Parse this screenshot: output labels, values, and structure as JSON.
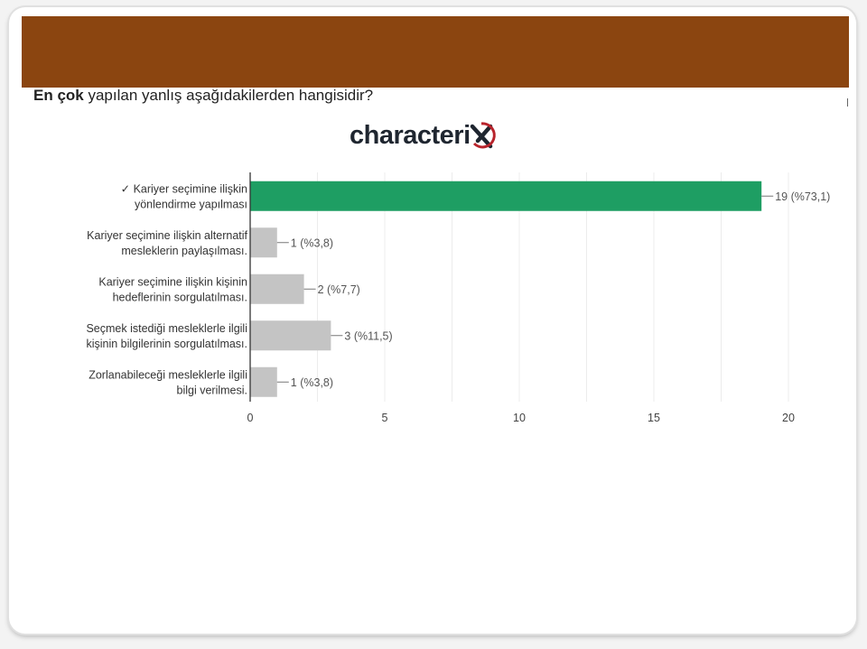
{
  "question": {
    "bold": "En çok",
    "rest": " yapılan yanlış aşağıdakilerden hangisidir?"
  },
  "logo": {
    "text": "characteri"
  },
  "colors": {
    "banner": "#8b4510",
    "correct_bar": "#1e9e63",
    "other_bar": "#c4c4c4",
    "correct_label": "#1e8a57",
    "logo_x": "#b8242c"
  },
  "chart_data": {
    "type": "bar",
    "orientation": "horizontal",
    "categories": [
      [
        "✓ Kariyer seçimine ilişkin",
        "yönlendirme yapılması"
      ],
      [
        "Kariyer seçimine ilişkin alternatif",
        "mesleklerin paylaşılması."
      ],
      [
        "Kariyer seçimine ilişkin kişinin",
        "hedeflerinin sorgulatılması."
      ],
      [
        "Seçmek istediği mesleklerle ilgili",
        "kişinin bilgilerinin sorgulatılması."
      ],
      [
        "Zorlanabileceği mesleklerle ilgili",
        "bilgi verilmesi."
      ]
    ],
    "values": [
      19,
      1,
      2,
      3,
      1
    ],
    "value_labels": [
      "19 (%73,1)",
      "1 (%3,8)",
      "2 (%7,7)",
      "3 (%11,5)",
      "1 (%3,8)"
    ],
    "correct_index": 0,
    "xlim": [
      0,
      20
    ],
    "xticks": [
      "0",
      "5",
      "10",
      "15",
      "20"
    ],
    "grid": true
  }
}
